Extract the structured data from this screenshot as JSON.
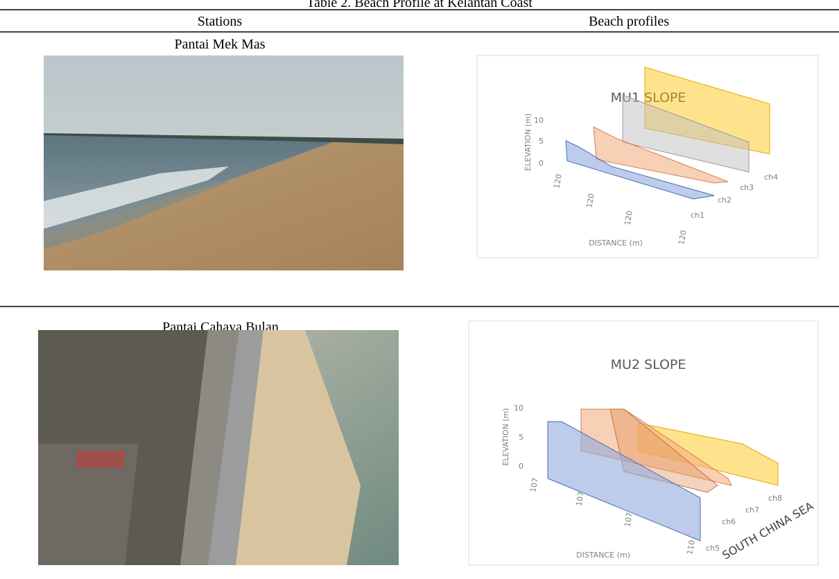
{
  "title": "Table 2. Beach Profile at Kelantan Coast",
  "table": {
    "header": [
      "Stations",
      "Beach profiles"
    ],
    "rows": [
      {
        "station": "Pantai Mek Mas",
        "profile": {
          "title": "MU1 SLOPE",
          "y_label": "ELEVATION (m)",
          "y_ticks": [
            10,
            5,
            0
          ],
          "distances": [
            120,
            120,
            120,
            120
          ],
          "channels": [
            "ch1",
            "ch2",
            "ch3",
            "ch4"
          ],
          "x_label": "DISTANCE (m)"
        }
      },
      {
        "station": "Pantai Cahaya Bulan",
        "profile": {
          "title": "MU2 SLOPE",
          "y_label": "ELEVATION (m)",
          "y_ticks": [
            10,
            5,
            0
          ],
          "distances": [
            107,
            107,
            107,
            110
          ],
          "channels": [
            "ch5",
            "ch6",
            "ch7",
            "ch8"
          ],
          "x_label": "DISTANCE (m)",
          "annotation": "SOUTH CHINA SEA"
        }
      }
    ]
  }
}
